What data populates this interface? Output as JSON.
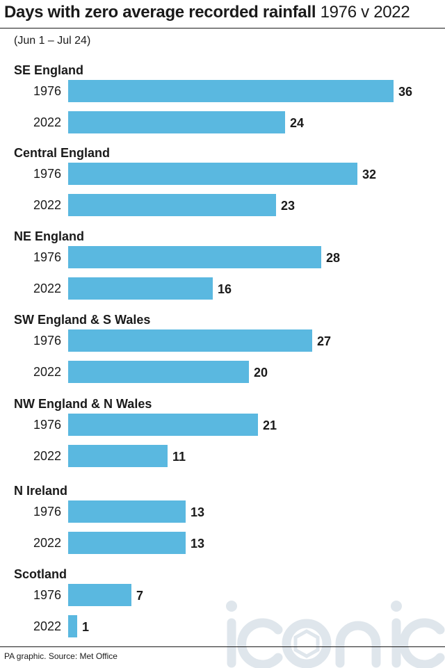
{
  "header": {
    "title_bold": "Days with zero average recorded rainfall",
    "title_light": "1976 v 2022",
    "subtitle": "(Jun 1 – Jul 24)"
  },
  "footer": {
    "source": "PA graphic. Source: Met Office"
  },
  "watermark": {
    "text": "iconic"
  },
  "colors": {
    "bar": "#5ab8e0",
    "text": "#1a1a1a",
    "watermark": "#dfe6ec"
  },
  "chart_data": {
    "type": "bar",
    "orientation": "horizontal",
    "title": "Days with zero average recorded rainfall 1976 v 2022",
    "subtitle": "(Jun 1 – Jul 24)",
    "groups": [
      {
        "name": "SE England",
        "rows": [
          {
            "year": "1976",
            "value": 36
          },
          {
            "year": "2022",
            "value": 24
          }
        ]
      },
      {
        "name": "Central England",
        "rows": [
          {
            "year": "1976",
            "value": 32
          },
          {
            "year": "2022",
            "value": 23
          }
        ]
      },
      {
        "name": "NE England",
        "rows": [
          {
            "year": "1976",
            "value": 28
          },
          {
            "year": "2022",
            "value": 16
          }
        ]
      },
      {
        "name": "SW England & S Wales",
        "rows": [
          {
            "year": "1976",
            "value": 27
          },
          {
            "year": "2022",
            "value": 20
          }
        ]
      },
      {
        "name": "NW England & N Wales",
        "rows": [
          {
            "year": "1976",
            "value": 21
          },
          {
            "year": "2022",
            "value": 11
          }
        ]
      },
      {
        "name": "N Ireland",
        "rows": [
          {
            "year": "1976",
            "value": 13
          },
          {
            "year": "2022",
            "value": 13
          }
        ]
      },
      {
        "name": "Scotland",
        "rows": [
          {
            "year": "1976",
            "value": 7
          },
          {
            "year": "2022",
            "value": 1
          }
        ]
      }
    ],
    "xlim": [
      0,
      36
    ],
    "grid": false,
    "legend": "none",
    "data_labels": true
  }
}
